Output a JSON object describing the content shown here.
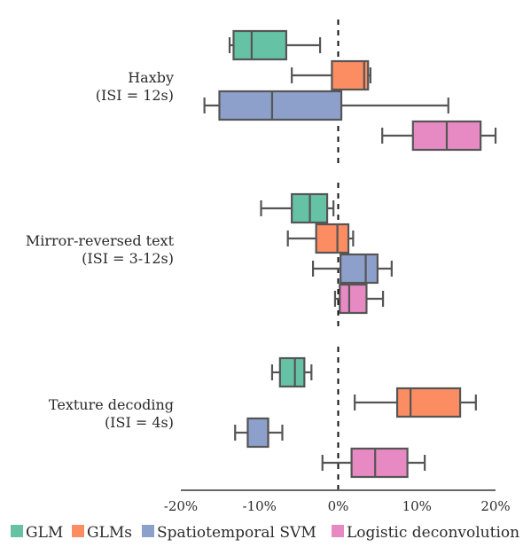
{
  "chart_data": {
    "type": "boxplot",
    "orientation": "horizontal",
    "xlim": [
      -20,
      20
    ],
    "x_ticks": [
      -20,
      -10,
      0,
      10,
      20
    ],
    "x_tick_labels": [
      "-20%",
      "-10%",
      "0%",
      "10%",
      "20%"
    ],
    "reference_line_x": 0,
    "legend_position": "bottom",
    "series": [
      {
        "name": "GLM",
        "color": "#66c2a5"
      },
      {
        "name": "GLMs",
        "color": "#fc8d62"
      },
      {
        "name": "Spatiotemporal SVM",
        "color": "#8da0cb"
      },
      {
        "name": "Logistic deconvolution",
        "color": "#e78ac3"
      }
    ],
    "groups": [
      {
        "label_lines": [
          "Haxby",
          "(ISI = 12s)"
        ],
        "boxes": [
          {
            "whislo": -13.8,
            "q1": -13.3,
            "med": -11.0,
            "q3": -6.6,
            "whishi": -2.3
          },
          {
            "whislo": -5.9,
            "q1": -0.8,
            "med": 3.3,
            "q3": 3.8,
            "whishi": 4.1
          },
          {
            "whislo": -17.0,
            "q1": -15.1,
            "med": -8.4,
            "q3": 0.4,
            "whishi": 14.0
          },
          {
            "whislo": 5.6,
            "q1": 9.5,
            "med": 13.8,
            "q3": 18.1,
            "whishi": 20.0
          }
        ]
      },
      {
        "label_lines": [
          "Mirror-reversed text",
          "(ISI = 3-12s)"
        ],
        "boxes": [
          {
            "whislo": -9.8,
            "q1": -5.9,
            "med": -3.6,
            "q3": -1.4,
            "whishi": -0.6
          },
          {
            "whislo": -6.4,
            "q1": -2.8,
            "med": -0.1,
            "q3": 1.3,
            "whishi": 1.9
          },
          {
            "whislo": -3.2,
            "q1": 0.3,
            "med": 3.5,
            "q3": 5.0,
            "whishi": 6.8
          },
          {
            "whislo": -0.4,
            "q1": 0.2,
            "med": 1.4,
            "q3": 3.6,
            "whishi": 5.7
          }
        ]
      },
      {
        "label_lines": [
          "Texture decoding",
          "(ISI = 4s)"
        ],
        "boxes": [
          {
            "whislo": -8.4,
            "q1": -7.4,
            "med": -5.5,
            "q3": -4.3,
            "whishi": -3.4
          },
          {
            "whislo": 2.1,
            "q1": 7.5,
            "med": 9.2,
            "q3": 15.5,
            "whishi": 17.5
          },
          {
            "whislo": -13.1,
            "q1": -11.5,
            "med": -8.9,
            "q3": -8.9,
            "whishi": -7.1
          },
          {
            "whislo": -2.0,
            "q1": 1.7,
            "med": 4.7,
            "q3": 8.8,
            "whishi": 11.0
          }
        ]
      }
    ]
  }
}
